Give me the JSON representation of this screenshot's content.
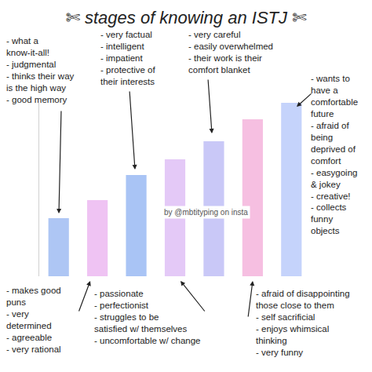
{
  "chart_data": {
    "type": "bar",
    "title": "✄ stages of knowing an ISTJ ✄",
    "categories": [
      null,
      null,
      null,
      null,
      null,
      null,
      null
    ],
    "values": [
      74,
      97,
      129,
      149,
      172,
      200,
      221
    ],
    "colors": [
      "#aec6f4",
      "#efc3f3",
      "#a9c4f5",
      "#e4c9f7",
      "#c9c8f7",
      "#f6bfe1",
      "#c5d3fb"
    ],
    "ylim": [
      0,
      221
    ],
    "yticks": [],
    "grid": false,
    "tick_labels": false,
    "annotations": [
      {
        "lines": [
          "- what a",
          "know-it-all!",
          "- judgmental",
          "- thinks their way",
          "is the high way",
          "- good memory"
        ]
      },
      {
        "lines": [
          "- very factual",
          "- intelligent",
          "- impatient",
          "- protective of",
          "their interests"
        ]
      },
      {
        "lines": [
          "- very careful",
          "- easily overwhelmed",
          "- their work is their",
          "comfort blanket"
        ]
      },
      {
        "lines": [
          "- wants to",
          "have a",
          "comfortable",
          "future",
          "- afraid of",
          "being",
          "deprived of",
          "comfort",
          "- easygoing",
          "& jokey",
          "- creative!",
          "- collects",
          "funny",
          "objects"
        ]
      },
      {
        "lines": [
          "- makes good",
          "puns",
          "- very",
          "determined",
          "- agreeable",
          "- very rational"
        ]
      },
      {
        "lines": [
          "- passionate",
          "- perfectionist",
          "- struggles to be",
          "satisfied w/ themselves",
          "- uncomfortable w/ change"
        ]
      },
      {
        "lines": [
          "- afraid of disappointing",
          "those close to them",
          "- self sacrificial",
          "- enjoys whimsical",
          "thinking",
          "- very funny"
        ]
      },
      {
        "lines": [
          "by @mbtityping on insta"
        ]
      }
    ]
  }
}
